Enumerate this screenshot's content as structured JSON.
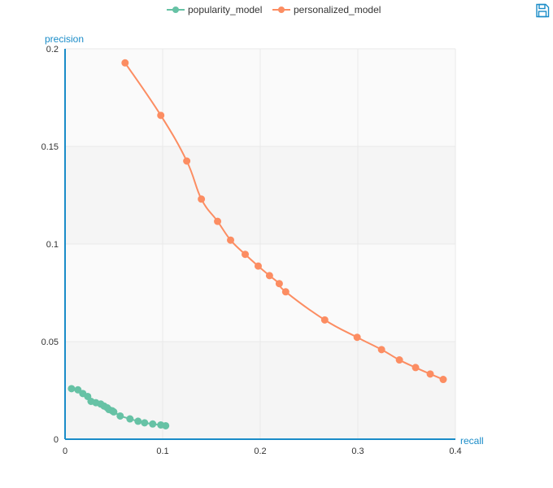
{
  "toolbox": {
    "save_icon": "floppy-disk-icon"
  },
  "colors": {
    "popularity_model": "#66c2a5",
    "personalized_model": "#fc8d62",
    "axis": "#1a8cc8",
    "grid": "#e9e9e9",
    "band": "#f5f5f5",
    "tick_text": "#333333"
  },
  "chart_data": {
    "type": "line",
    "title": "",
    "xlabel": "recall",
    "ylabel": "precision",
    "xlim": [
      0,
      0.4
    ],
    "ylim": [
      0,
      0.2
    ],
    "xticks": [
      "0",
      "0.1",
      "0.2",
      "0.3",
      "0.4"
    ],
    "yticks": [
      "0",
      "0.05",
      "0.1",
      "0.15",
      "0.2"
    ],
    "grid": true,
    "legend_position": "top-center",
    "series": [
      {
        "name": "popularity_model",
        "smooth": false,
        "points": [
          [
            0.0066,
            0.0259
          ],
          [
            0.0132,
            0.0253
          ],
          [
            0.0182,
            0.0234
          ],
          [
            0.0232,
            0.0219
          ],
          [
            0.0266,
            0.0194
          ],
          [
            0.0316,
            0.0187
          ],
          [
            0.0366,
            0.018
          ],
          [
            0.0399,
            0.017
          ],
          [
            0.0432,
            0.0161
          ],
          [
            0.0449,
            0.0152
          ],
          [
            0.0482,
            0.0146
          ],
          [
            0.0499,
            0.014
          ],
          [
            0.0565,
            0.0119
          ],
          [
            0.0665,
            0.0104
          ],
          [
            0.0748,
            0.0092
          ],
          [
            0.0815,
            0.0084
          ],
          [
            0.0898,
            0.0078
          ],
          [
            0.0981,
            0.0073
          ],
          [
            0.1031,
            0.0069
          ]
        ]
      },
      {
        "name": "personalized_model",
        "smooth": true,
        "points": [
          [
            0.0615,
            0.1928
          ],
          [
            0.0981,
            0.1659
          ],
          [
            0.1247,
            0.1425
          ],
          [
            0.1397,
            0.123
          ],
          [
            0.1563,
            0.1116
          ],
          [
            0.1696,
            0.102
          ],
          [
            0.1846,
            0.0947
          ],
          [
            0.1979,
            0.0887
          ],
          [
            0.2095,
            0.0838
          ],
          [
            0.2195,
            0.0797
          ],
          [
            0.2261,
            0.0755
          ],
          [
            0.2661,
            0.0611
          ],
          [
            0.2993,
            0.0522
          ],
          [
            0.3243,
            0.0459
          ],
          [
            0.3426,
            0.0406
          ],
          [
            0.3592,
            0.0367
          ],
          [
            0.3742,
            0.0334
          ],
          [
            0.3875,
            0.0306
          ]
        ]
      }
    ]
  }
}
